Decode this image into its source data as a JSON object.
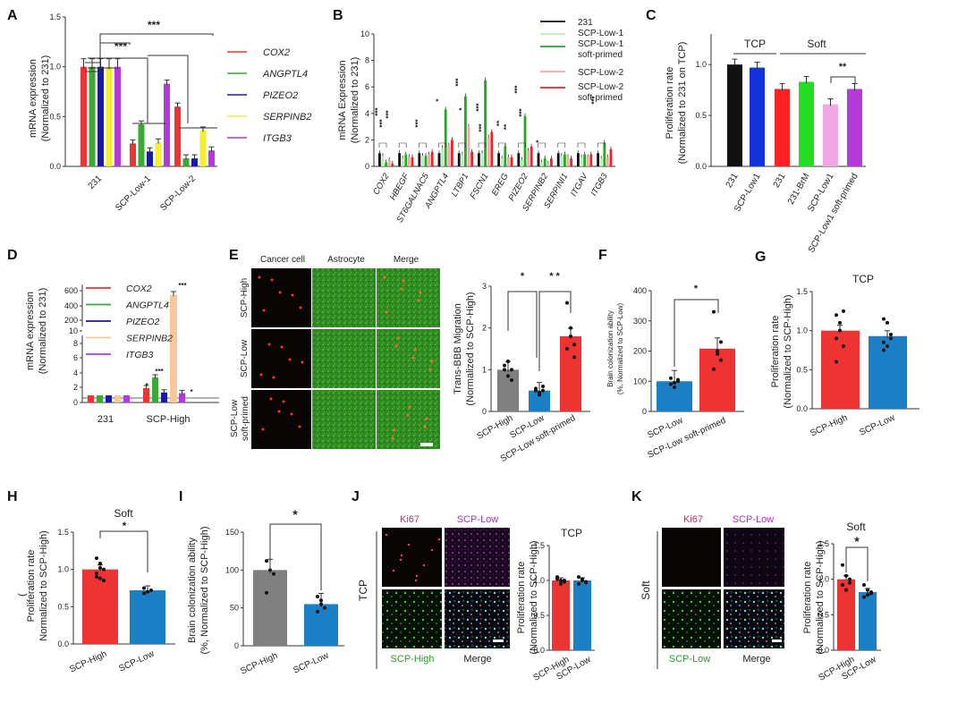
{
  "colors": {
    "red": "#ee3333",
    "green": "#3aa935",
    "blue": "#1a1aaa",
    "yellow": "#f2ef30",
    "purple": "#b23ad8",
    "orange": "#f8c89a",
    "gray": "#808080",
    "panelblue": "#1a7fc4",
    "pink": "#f2a8e6",
    "brightgreen": "#22dd22",
    "black": "#111111"
  },
  "panels": {
    "A": {
      "letter": "A",
      "legend": [
        "COX2",
        "ANGPTL4",
        "PIZEO2",
        "SERPINB2",
        "ITGB3"
      ],
      "sig": [
        "***",
        "***"
      ]
    },
    "B": {
      "letter": "B",
      "legend": [
        "231",
        "SCP-Low-1",
        "SCP-Low-1",
        "soft-primed",
        "SCP-Low-2",
        "SCP-Low-2",
        "soft-primed"
      ],
      "sig": [
        "***",
        "***",
        "***",
        "***",
        "*",
        "***",
        "*",
        "***",
        "***",
        "**",
        "**",
        "***",
        "***",
        "*",
        "***"
      ]
    },
    "C": {
      "letter": "C",
      "group_labels": [
        "TCP",
        "Soft"
      ],
      "sig": [
        "**"
      ]
    },
    "D": {
      "letter": "D",
      "legend": [
        "COX2",
        "ANGPTL4",
        "PIZEO2",
        "SERPINB2",
        "ITGB3"
      ],
      "sig": [
        "***",
        "*",
        "***",
        "*"
      ]
    },
    "E": {
      "letter": "E",
      "headers": [
        "Cancer cell",
        "Astrocyte",
        "Merge"
      ],
      "row_labels": [
        "SCP-High",
        "SCP-Low",
        "SCP-Low",
        "soft-primed"
      ],
      "sig": [
        "*",
        "* *"
      ]
    },
    "F": {
      "letter": "F",
      "sig": [
        "*"
      ]
    },
    "G": {
      "letter": "G",
      "title": "TCP"
    },
    "H": {
      "letter": "H",
      "title": "Soft",
      "sig": [
        "*"
      ],
      "ylabel_paren": "("
    },
    "I": {
      "letter": "I",
      "sig": [
        "*"
      ]
    },
    "J": {
      "letter": "J",
      "micro_labels": [
        "Ki67",
        "SCP-Low",
        "SCP-High",
        "Merge"
      ],
      "side_label": "TCP",
      "title": "TCP"
    },
    "K": {
      "letter": "K",
      "micro_labels": [
        "Ki67",
        "SCP-Low",
        "SCP-Low",
        "Merge"
      ],
      "side_label": "Soft",
      "title": "Soft",
      "sig": [
        "*"
      ]
    }
  },
  "chart_data": [
    {
      "id": "A",
      "type": "bar",
      "categories": [
        "231",
        "SCP-Low-1",
        "SCP-Low-2"
      ],
      "series": [
        {
          "name": "COX2",
          "values": [
            1.0,
            0.23,
            0.6
          ]
        },
        {
          "name": "ANGPTL4",
          "values": [
            1.0,
            0.42,
            0.08
          ]
        },
        {
          "name": "PIZEO2",
          "values": [
            1.0,
            0.15,
            0.08
          ]
        },
        {
          "name": "SERPINB2",
          "values": [
            1.0,
            0.24,
            0.36
          ]
        },
        {
          "name": "ITGB3",
          "values": [
            1.0,
            0.83,
            0.16
          ]
        }
      ],
      "ylabel": [
        "mRNA expression",
        "(Normalized to 231)"
      ],
      "ylim": [
        0,
        1.5
      ],
      "yticks": [
        "0.0",
        "0.5",
        "1.0",
        "1.5"
      ]
    },
    {
      "id": "B",
      "type": "bar",
      "categories": [
        "COX2",
        "HBEGF",
        "ST6GALNAC5",
        "ANGPTL4",
        "LTBP1",
        "FSCN1",
        "EREG",
        "PIZEO2",
        "SERPINB2",
        "SERPINI1",
        "ITGAV",
        "ITGB3"
      ],
      "series": [
        {
          "name": "231",
          "values": [
            1,
            1,
            1,
            1,
            1,
            1,
            1,
            1,
            1,
            1,
            1,
            1
          ]
        },
        {
          "name": "SCP-Low-1",
          "values": [
            0.8,
            0.6,
            0.8,
            1.4,
            0.9,
            1.0,
            0.6,
            0.5,
            0.3,
            0.8,
            0.7,
            0.6
          ]
        },
        {
          "name": "SCP-Low-1 soft-primed",
          "values": [
            0.3,
            0.9,
            0.8,
            4.3,
            5.3,
            6.5,
            1.5,
            3.8,
            0.6,
            0.9,
            0.9,
            1.8
          ]
        },
        {
          "name": "SCP-Low-2",
          "values": [
            0.5,
            0.7,
            0.9,
            1.6,
            3.0,
            2.2,
            0.7,
            1.2,
            0.2,
            0.7,
            0.7,
            0.7
          ]
        },
        {
          "name": "SCP-Low-2 soft-primed",
          "values": [
            0.2,
            0.7,
            1.1,
            2.0,
            1.1,
            2.6,
            0.7,
            1.5,
            0.6,
            0.6,
            0.9,
            1.3
          ]
        }
      ],
      "ylabel": [
        "mRNA Expression",
        "(Normalized to 231)"
      ],
      "ylim": [
        0,
        10
      ],
      "yticks": [
        "0",
        "2",
        "4",
        "6",
        "8",
        "10"
      ]
    },
    {
      "id": "C",
      "type": "bar",
      "categories": [
        "231",
        "SCP-Low1",
        "231",
        "231-BrM",
        "SCP-Low1",
        "SCP-Low1 soft-primed"
      ],
      "values": [
        1.0,
        0.97,
        0.76,
        0.83,
        0.61,
        0.76
      ],
      "ylabel": [
        "Proliferation rate",
        "(Normalized to 231 on TCP)"
      ],
      "ylim": [
        0,
        1.3
      ],
      "yticks": [
        "0.0",
        "0.5",
        "1.0"
      ]
    },
    {
      "id": "D",
      "type": "bar",
      "broken_axis": true,
      "categories": [
        "231",
        "SCP-High"
      ],
      "series": [
        {
          "name": "COX2",
          "values": [
            1.0,
            2.0
          ]
        },
        {
          "name": "ANGPTL4",
          "values": [
            1.0,
            3.5
          ]
        },
        {
          "name": "PIZEO2",
          "values": [
            1.0,
            1.4
          ]
        },
        {
          "name": "SERPINB2",
          "values": [
            1.0,
            570
          ]
        },
        {
          "name": "ITGB3",
          "values": [
            1.0,
            1.3
          ]
        }
      ],
      "ylabel": [
        "mRNA expression",
        "(Normalized to 231)"
      ],
      "yticks": [
        "0",
        "2",
        "4",
        "6",
        "8",
        "10",
        "200",
        "400",
        "600"
      ]
    },
    {
      "id": "E",
      "type": "bar",
      "categories": [
        "SCP-High",
        "SCP-Low",
        "SCP-Low soft-primed"
      ],
      "values": [
        1.0,
        0.5,
        1.8
      ],
      "ylabel": [
        "Trans-BBB Migration",
        "(Normalized to SCP-High)"
      ],
      "ylim": [
        0,
        3
      ],
      "yticks": [
        "0",
        "1",
        "2",
        "3"
      ]
    },
    {
      "id": "F",
      "type": "bar",
      "categories": [
        "SCP-Low",
        "SCP-Low soft-primed"
      ],
      "values": [
        100,
        208
      ],
      "ylabel": [
        "Brain colonization ability",
        "(%, Normalized to SCP-Low)"
      ],
      "ylim": [
        0,
        400
      ],
      "yticks": [
        "0",
        "100",
        "200",
        "300",
        "400"
      ]
    },
    {
      "id": "G",
      "type": "bar",
      "categories": [
        "SCP-High",
        "SCP-Low"
      ],
      "values": [
        1.0,
        0.93
      ],
      "ylabel": [
        "Proliferation rate",
        "(Normalized to SCP-High)"
      ],
      "ylim": [
        0,
        1.5
      ],
      "yticks": [
        "0.0",
        "0.5",
        "1.0",
        "1.5"
      ]
    },
    {
      "id": "H",
      "type": "bar",
      "categories": [
        "SCP-High",
        "SCP-Low"
      ],
      "values": [
        1.0,
        0.72
      ],
      "ylabel": [
        "Proliferation rate",
        "Normalized to SCP-High)"
      ],
      "ylim": [
        0,
        1.5
      ],
      "yticks": [
        "0.0",
        "0.5",
        "1.0",
        "1.5"
      ]
    },
    {
      "id": "I",
      "type": "bar",
      "categories": [
        "SCP-High",
        "SCP-Low"
      ],
      "values": [
        100,
        55
      ],
      "ylabel": [
        "Brain colonization ability",
        "(%, Normalized to SCP-High)"
      ],
      "ylim": [
        0,
        150
      ],
      "yticks": [
        "0",
        "50",
        "100",
        "150"
      ]
    },
    {
      "id": "J",
      "type": "bar",
      "categories": [
        "SCP-High",
        "SCP-Low"
      ],
      "values": [
        1.0,
        1.0
      ],
      "ylabel": [
        "Proliferation rate",
        "(Normalized to SCP-High)"
      ],
      "ylim": [
        0,
        1.5
      ],
      "yticks": [
        "0.0",
        "0.5",
        "1.0",
        "1.5"
      ]
    },
    {
      "id": "K",
      "type": "bar",
      "categories": [
        "SCP-High",
        "SCP-Low"
      ],
      "values": [
        1.0,
        0.82
      ],
      "ylabel": [
        "Proliferation rate",
        "(Normalized to SCP-High)"
      ],
      "ylim": [
        0,
        1.5
      ],
      "yticks": [
        "0.0",
        "0.5",
        "1.0",
        "1.5"
      ]
    }
  ]
}
